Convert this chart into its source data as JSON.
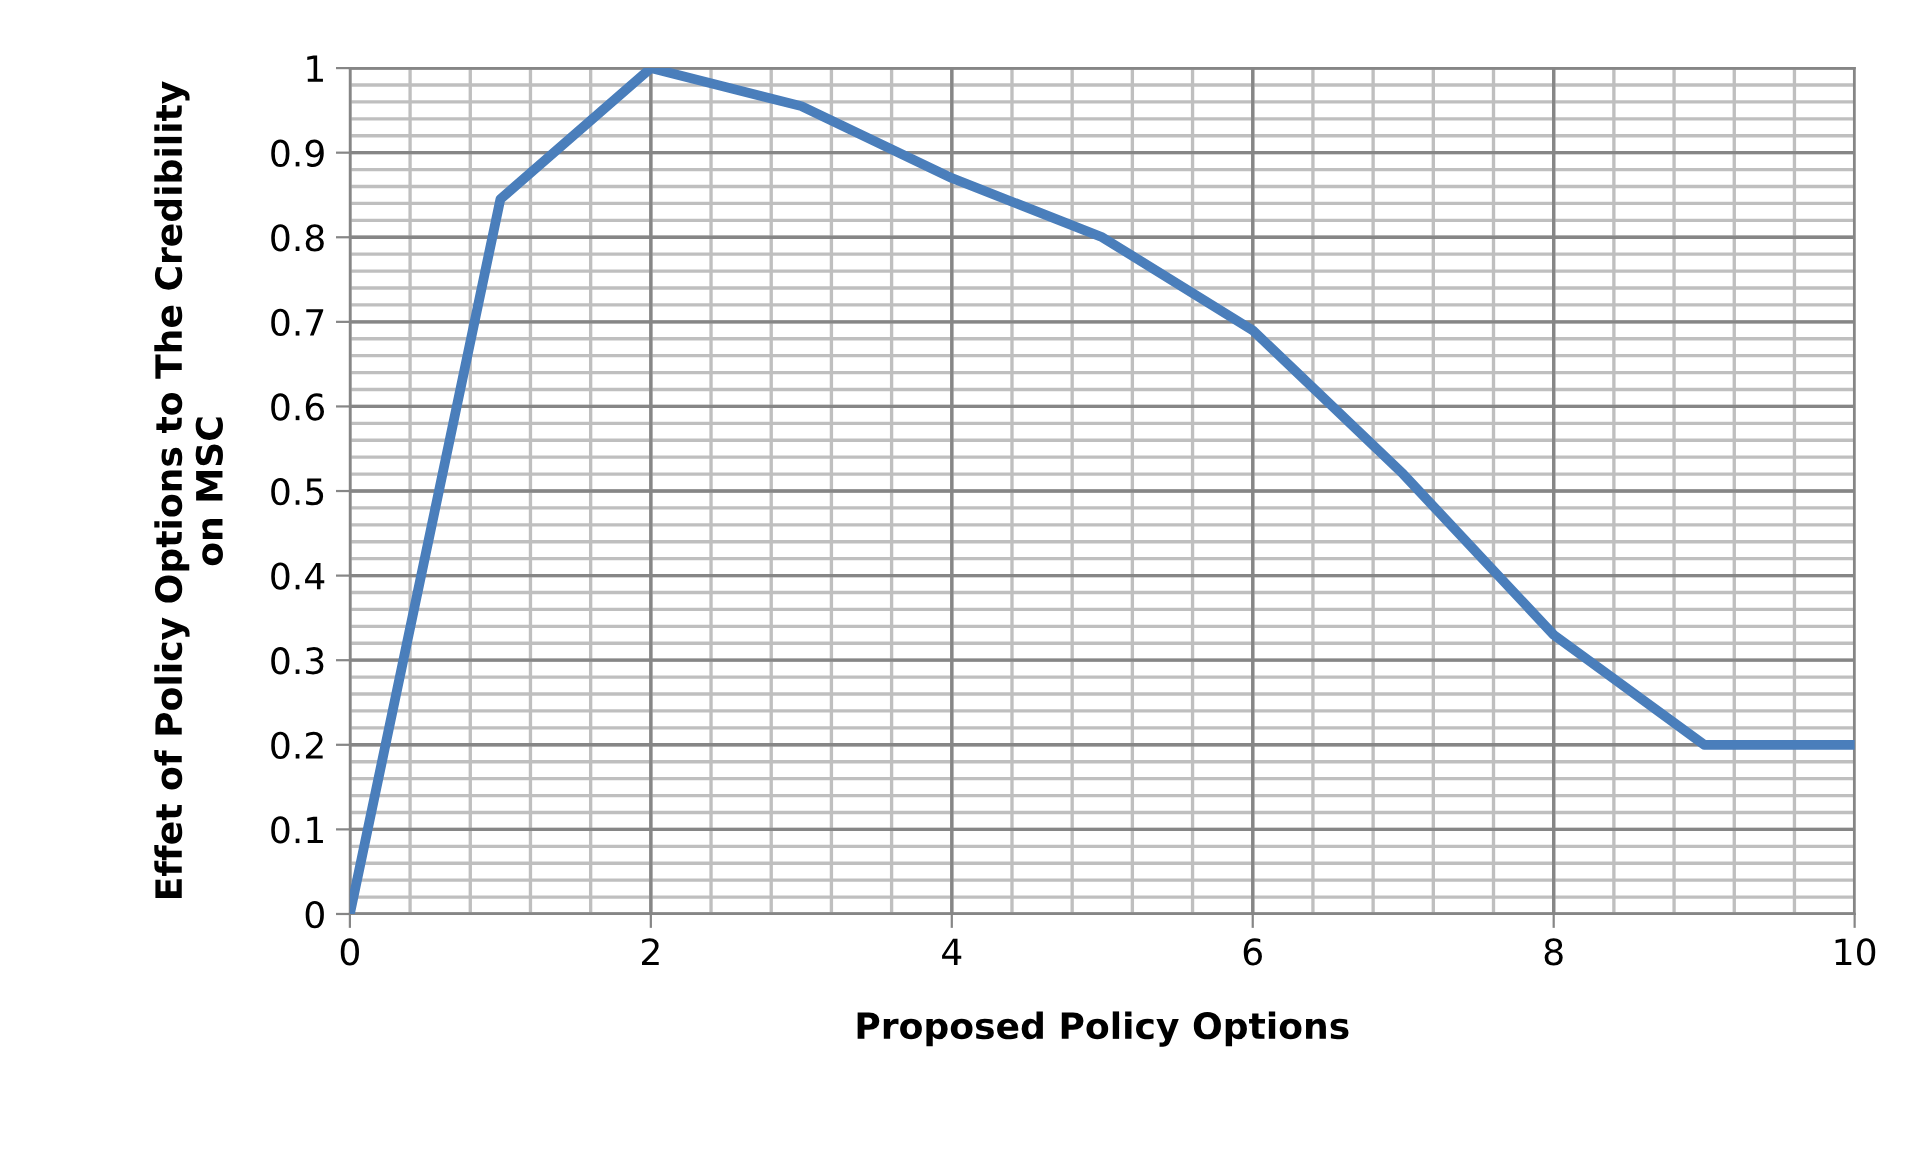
{
  "chart_data": {
    "type": "line",
    "xlabel": "Proposed Policy Options",
    "ylabel": "Effet of Policy Options to The Credibility\non MSC",
    "x": [
      0,
      1,
      2,
      3,
      4,
      5,
      6,
      7,
      8,
      9,
      10
    ],
    "series": [
      {
        "color": "#4a7ebb",
        "values": [
          0,
          0.845,
          1,
          0.955,
          0.87,
          0.8,
          0.69,
          0.52,
          0.33,
          0.2,
          0.2
        ]
      }
    ],
    "xlim": [
      0,
      10
    ],
    "xticks": [
      0,
      2,
      4,
      6,
      8,
      10
    ],
    "ylim": [
      0,
      1
    ],
    "yticks": [
      0,
      0.1,
      0.2,
      0.3,
      0.4,
      0.5,
      0.6,
      0.7,
      0.8,
      0.9,
      1
    ],
    "grid": true,
    "legend": false,
    "marker": "none",
    "line_style": "solid"
  }
}
